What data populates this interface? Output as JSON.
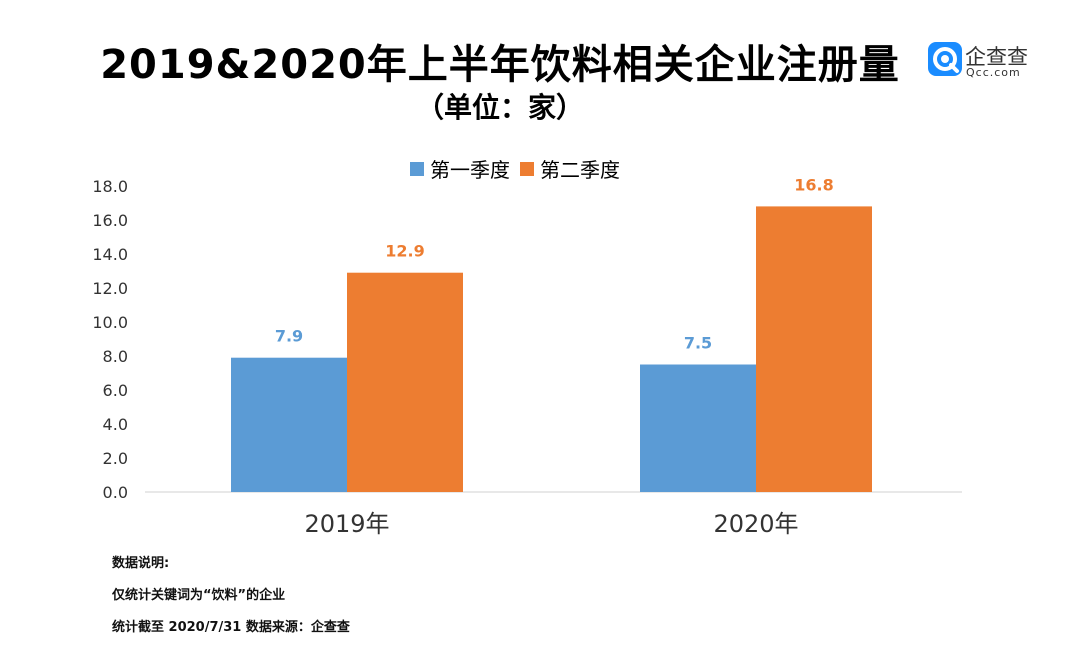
{
  "header": {
    "title": "2019&2020年上半年饮料相关企业注册量",
    "subtitle": "（单位：家）"
  },
  "logo": {
    "name": "企查查",
    "domain": "Qcc.com",
    "color": "#1a8cff"
  },
  "chart_data": {
    "type": "bar",
    "categories": [
      "2019年",
      "2020年"
    ],
    "series": [
      {
        "name": "第一季度",
        "values": [
          7.9,
          7.5
        ],
        "color": "#5b9bd5"
      },
      {
        "name": "第二季度",
        "values": [
          12.9,
          16.8
        ],
        "color": "#ed7d31"
      }
    ],
    "value_labels": [
      [
        "7.9",
        "7.5"
      ],
      [
        "12.9",
        "16.8"
      ]
    ],
    "yticks": [
      "0.0",
      "2.0",
      "4.0",
      "6.0",
      "8.0",
      "10.0",
      "12.0",
      "14.0",
      "16.0",
      "18.0"
    ],
    "ylim": [
      0,
      18
    ],
    "title": "2019&2020年上半年饮料相关企业注册量",
    "xlabel": "",
    "ylabel": "",
    "legend": "top"
  },
  "notes": {
    "heading": "数据说明:",
    "line1": "仅统计关键词为“饮料”的企业",
    "line2": "统计截至 2020/7/31     数据来源：企查查"
  }
}
